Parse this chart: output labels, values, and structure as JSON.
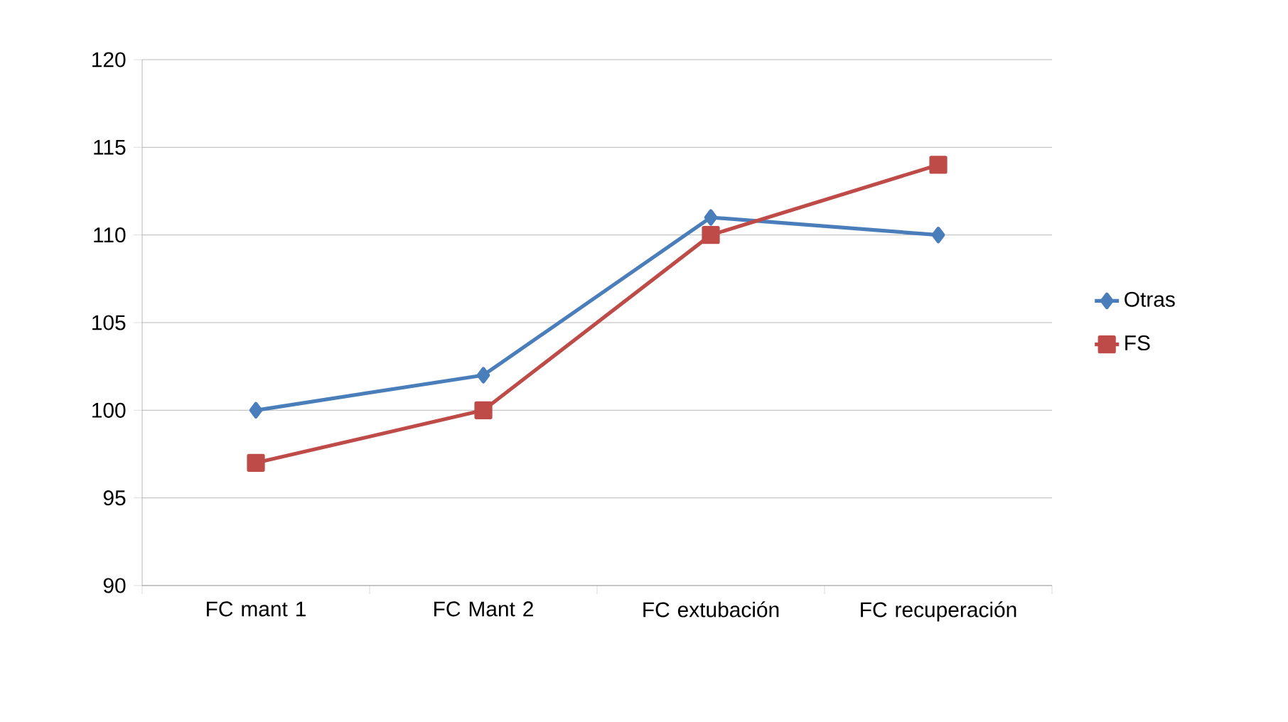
{
  "chart_data": {
    "type": "line",
    "categories": [
      "FC mant 1",
      "FC Mant 2",
      "FC extubación",
      "FC recuperación"
    ],
    "series": [
      {
        "name": "Otras",
        "color": "#4a7ebb",
        "values": [
          100,
          102,
          111,
          110
        ],
        "marker": "diamond"
      },
      {
        "name": "FS",
        "color": "#be4b48",
        "values": [
          97,
          100,
          110,
          114
        ],
        "marker": "square"
      }
    ],
    "ylim": [
      90,
      120
    ],
    "yticks": [
      90,
      95,
      100,
      105,
      110,
      115,
      120
    ],
    "grid": "y",
    "legend": "right"
  }
}
